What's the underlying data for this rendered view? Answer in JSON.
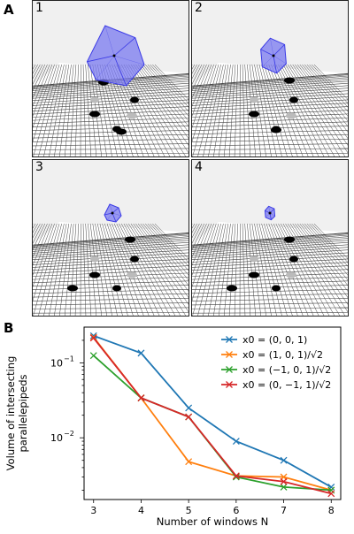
{
  "panel_a": {
    "letter": "A",
    "subpanels": [
      {
        "label": "1",
        "cube_size": "large",
        "rotated": true
      },
      {
        "label": "2",
        "cube_size": "large",
        "rotated": false
      },
      {
        "label": "3",
        "cube_size": "small",
        "rotated": true
      },
      {
        "label": "4",
        "cube_size": "small",
        "rotated": false
      }
    ],
    "colors": {
      "box": "#3a3ae6",
      "box_fill": "#7a7af0",
      "floor_line": "#444444",
      "background": "#f0f0f0",
      "window": "#000000",
      "window_shadow": "#bbbbbb"
    }
  },
  "panel_b": {
    "letter": "B"
  },
  "chart_data": {
    "type": "line",
    "ylabel": "Volume of intersecting\nparallelepipeds",
    "xlabel": "Number of windows N",
    "x": [
      3,
      4,
      5,
      6,
      7,
      8
    ],
    "xlim": [
      2.8,
      8.2
    ],
    "ylim": [
      0.0015,
      0.3
    ],
    "yscale": "log",
    "yticks": [
      "10^-1",
      "10^-2"
    ],
    "legend_position": "top-right",
    "series": [
      {
        "name": "x0 = (0, 0, 1)",
        "color": "#1f77b4",
        "values": [
          0.23,
          0.135,
          0.025,
          0.009,
          0.005,
          0.0022
        ]
      },
      {
        "name": "x0 = (1, 0, 1)/√2",
        "color": "#ff7f0e",
        "values": [
          0.22,
          0.034,
          0.0048,
          0.0031,
          0.003,
          0.002
        ]
      },
      {
        "name": "x0 = (−1, 0, 1)/√2",
        "color": "#2ca02c",
        "values": [
          0.125,
          0.034,
          0.019,
          0.003,
          0.0022,
          0.002
        ]
      },
      {
        "name": "x0 = (0, −1, 1)/√2",
        "color": "#d62728",
        "values": [
          0.215,
          0.034,
          0.019,
          0.0031,
          0.0026,
          0.0018
        ]
      }
    ]
  }
}
